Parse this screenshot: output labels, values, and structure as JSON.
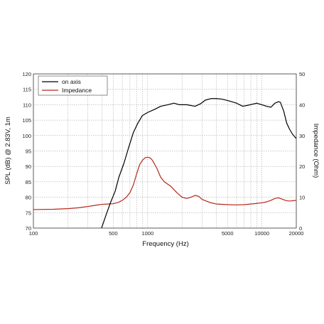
{
  "chart_data": {
    "type": "line",
    "xlabel": "Frequency (Hz)",
    "ylabel_left": "SPL (dB) @ 2.83V, 1m",
    "ylabel_right": "Impedance (Ohm)",
    "x_scale": "log",
    "xlim": [
      100,
      20000
    ],
    "ylim_left": [
      70,
      120
    ],
    "ylim_right": [
      0,
      50
    ],
    "x_ticks": [
      100,
      500,
      1000,
      5000,
      10000,
      20000
    ],
    "x_tick_labels": [
      "100",
      "500",
      "1000",
      "5000",
      "10000",
      "20000"
    ],
    "y_ticks_left": [
      70,
      75,
      80,
      85,
      90,
      95,
      100,
      105,
      110,
      115,
      120
    ],
    "y_ticks_right": [
      0,
      10,
      20,
      30,
      40,
      50
    ],
    "grid": true,
    "legend_position": "top-left",
    "series": [
      {
        "name": "on axis",
        "color": "#000000",
        "axis": "left",
        "x": [
          395,
          430,
          470,
          520,
          560,
          620,
          680,
          750,
          820,
          900,
          1000,
          1150,
          1300,
          1500,
          1700,
          1900,
          2200,
          2600,
          2900,
          3200,
          3600,
          4000,
          4500,
          5200,
          6000,
          6800,
          7500,
          8300,
          9000,
          10000,
          11000,
          12000,
          13000,
          14000,
          14500,
          15500,
          16500,
          17500,
          18500,
          19500,
          20000
        ],
        "y": [
          70,
          74,
          78,
          82,
          86.5,
          91,
          96,
          101,
          104,
          106.5,
          107.5,
          108.5,
          109.5,
          110,
          110.5,
          110,
          110,
          109.5,
          110.3,
          111.5,
          112,
          112,
          111.8,
          111.2,
          110.5,
          109.5,
          109.8,
          110.2,
          110.5,
          110,
          109.5,
          109.2,
          110.5,
          111,
          110.8,
          108,
          104,
          102,
          100.5,
          99.5,
          99
        ]
      },
      {
        "name": "Impedance",
        "color": "#b5281c",
        "axis": "right",
        "x": [
          100,
          150,
          200,
          250,
          300,
          350,
          400,
          450,
          500,
          550,
          600,
          650,
          700,
          750,
          800,
          850,
          900,
          950,
          1000,
          1050,
          1100,
          1200,
          1300,
          1400,
          1600,
          1800,
          2000,
          2200,
          2400,
          2600,
          2800,
          3000,
          3500,
          4000,
          5000,
          6000,
          7000,
          8000,
          9000,
          10000,
          11000,
          12000,
          13000,
          14000,
          15000,
          16000,
          17000,
          18000,
          19000,
          20000
        ],
        "y": [
          6,
          6.1,
          6.3,
          6.6,
          7,
          7.4,
          7.7,
          7.8,
          7.9,
          8.3,
          9,
          10,
          11.5,
          14,
          17.5,
          20.5,
          22,
          22.8,
          23,
          22.8,
          22,
          19.5,
          16.5,
          15,
          13.5,
          11.5,
          10,
          9.6,
          10,
          10.6,
          10.3,
          9.3,
          8.3,
          7.8,
          7.6,
          7.5,
          7.6,
          7.8,
          8,
          8.2,
          8.5,
          9,
          9.6,
          9.8,
          9.4,
          9,
          8.8,
          8.8,
          8.9,
          9
        ]
      }
    ]
  }
}
